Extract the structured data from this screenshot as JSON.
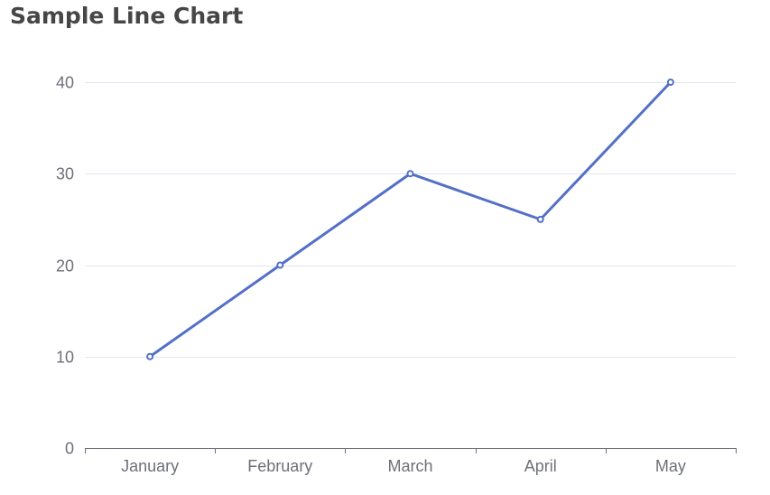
{
  "chart_data": {
    "type": "line",
    "title": "Sample Line Chart",
    "categories": [
      "January",
      "February",
      "March",
      "April",
      "May"
    ],
    "series": [
      {
        "values": [
          10,
          20,
          30,
          25,
          40
        ]
      }
    ],
    "xlabel": "",
    "ylabel": "",
    "ylim": [
      0,
      40
    ],
    "yticks": [
      0,
      10,
      20,
      30,
      40
    ],
    "grid": true,
    "legend": "none"
  },
  "colors": {
    "line": "#5470c6",
    "grid": "#e0e6f1",
    "axis": "#6e7079",
    "title": "#464646"
  }
}
